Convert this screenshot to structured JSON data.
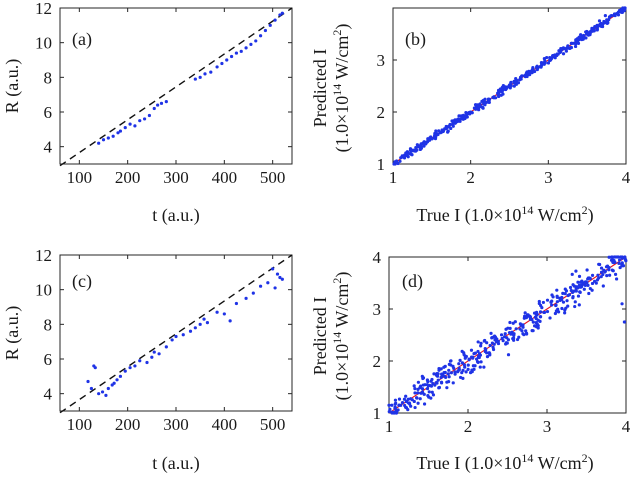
{
  "chart_data": [
    {
      "panel": "(a)",
      "type": "scatter",
      "xlabel": "t (a.u.)",
      "ylabel": "R (a.u.)",
      "xlim": [
        60,
        540
      ],
      "ylim": [
        3,
        12
      ],
      "xticks": [
        100,
        200,
        300,
        400,
        500
      ],
      "yticks": [
        4,
        6,
        8,
        10,
        12
      ],
      "fit_line": {
        "style": "dashed",
        "color": "#111111",
        "x": [
          60,
          540
        ],
        "y": [
          2.9,
          12.0
        ]
      },
      "series": [
        {
          "name": "data",
          "color": "#1f33e6",
          "x": [
            140,
            150,
            160,
            170,
            180,
            185,
            195,
            205,
            215,
            225,
            235,
            245,
            255,
            262,
            270,
            280,
            340,
            350,
            360,
            372,
            385,
            395,
            405,
            415,
            425,
            435,
            445,
            455,
            465,
            475,
            485,
            495,
            505,
            515,
            520
          ],
          "y": [
            4.2,
            4.4,
            4.5,
            4.6,
            4.8,
            4.9,
            5.1,
            5.3,
            5.2,
            5.5,
            5.6,
            5.8,
            6.2,
            6.4,
            6.5,
            6.6,
            7.9,
            8.0,
            8.2,
            8.3,
            8.6,
            8.8,
            9.0,
            9.2,
            9.4,
            9.5,
            9.7,
            9.9,
            10.1,
            10.4,
            10.7,
            11.0,
            11.3,
            11.6,
            11.7
          ]
        }
      ]
    },
    {
      "panel": "(b)",
      "type": "scatter",
      "xlabel": "True I (1.0×10",
      "xlabel_sup": "14",
      "xlabel_tail": " W/cm",
      "xlabel_sup2": "2",
      "xlabel_end": ")",
      "ylabel_line1": "Predicted I",
      "ylabel_line2": "(1.0×10",
      "ylabel_sup": "14",
      "ylabel_tail": " W/cm",
      "ylabel_sup2": "2",
      "ylabel_end": ")",
      "xlim": [
        1,
        4
      ],
      "ylim": [
        1,
        4
      ],
      "xticks": [
        1,
        2,
        3,
        4
      ],
      "yticks": [
        1,
        2,
        3
      ],
      "reference_line": {
        "color": "#e8141e",
        "x": [
          1,
          4
        ],
        "y": [
          1,
          4
        ]
      },
      "series": [
        {
          "name": "predictions",
          "color": "#1f33e6",
          "n_points": 400,
          "noise_sd": 0.035
        }
      ]
    },
    {
      "panel": "(c)",
      "type": "scatter",
      "xlabel": "t (a.u.)",
      "ylabel": "R (a.u.)",
      "xlim": [
        60,
        540
      ],
      "ylim": [
        3,
        12
      ],
      "xticks": [
        100,
        200,
        300,
        400,
        500
      ],
      "yticks": [
        4,
        6,
        8,
        10,
        12
      ],
      "fit_line": {
        "style": "dashed",
        "color": "#111111",
        "x": [
          60,
          540
        ],
        "y": [
          2.9,
          12.0
        ]
      },
      "series": [
        {
          "name": "data",
          "color": "#1f33e6",
          "x": [
            118,
            125,
            130,
            133,
            140,
            148,
            155,
            160,
            168,
            172,
            178,
            185,
            195,
            205,
            215,
            225,
            240,
            250,
            255,
            265,
            280,
            292,
            300,
            315,
            330,
            340,
            350,
            358,
            365,
            385,
            400,
            412,
            425,
            445,
            460,
            475,
            490,
            500,
            505,
            510,
            515,
            520
          ],
          "y": [
            4.7,
            4.3,
            5.6,
            5.5,
            4.0,
            4.1,
            3.9,
            4.3,
            4.5,
            4.6,
            4.8,
            5.0,
            5.3,
            5.5,
            5.6,
            5.9,
            5.8,
            6.1,
            6.4,
            6.3,
            6.7,
            7.1,
            7.3,
            7.4,
            7.6,
            7.8,
            8.0,
            8.3,
            8.1,
            8.7,
            8.6,
            8.2,
            9.2,
            9.5,
            9.8,
            10.2,
            10.4,
            11.2,
            10.1,
            10.9,
            10.7,
            10.6
          ]
        }
      ]
    },
    {
      "panel": "(d)",
      "type": "scatter",
      "xlabel": "True I (1.0×10",
      "xlabel_sup": "14",
      "xlabel_tail": " W/cm",
      "xlabel_sup2": "2",
      "xlabel_end": ")",
      "ylabel_line1": "Predicted I",
      "ylabel_line2": "(1.0×10",
      "ylabel_sup": "14",
      "ylabel_tail": " W/cm",
      "ylabel_sup2": "2",
      "ylabel_end": ")",
      "xlim": [
        1,
        4
      ],
      "ylim": [
        1,
        4
      ],
      "xticks": [
        1,
        2,
        3,
        4
      ],
      "yticks": [
        1,
        2,
        3,
        4
      ],
      "reference_line": {
        "color": "#e8141e",
        "x": [
          1,
          4
        ],
        "y": [
          1,
          4
        ]
      },
      "series": [
        {
          "name": "predictions",
          "color": "#1f33e6",
          "n_points": 420,
          "noise_sd": 0.13,
          "outliers": [
            [
              3.98,
              2.75
            ],
            [
              3.95,
              3.1
            ]
          ]
        }
      ]
    }
  ]
}
